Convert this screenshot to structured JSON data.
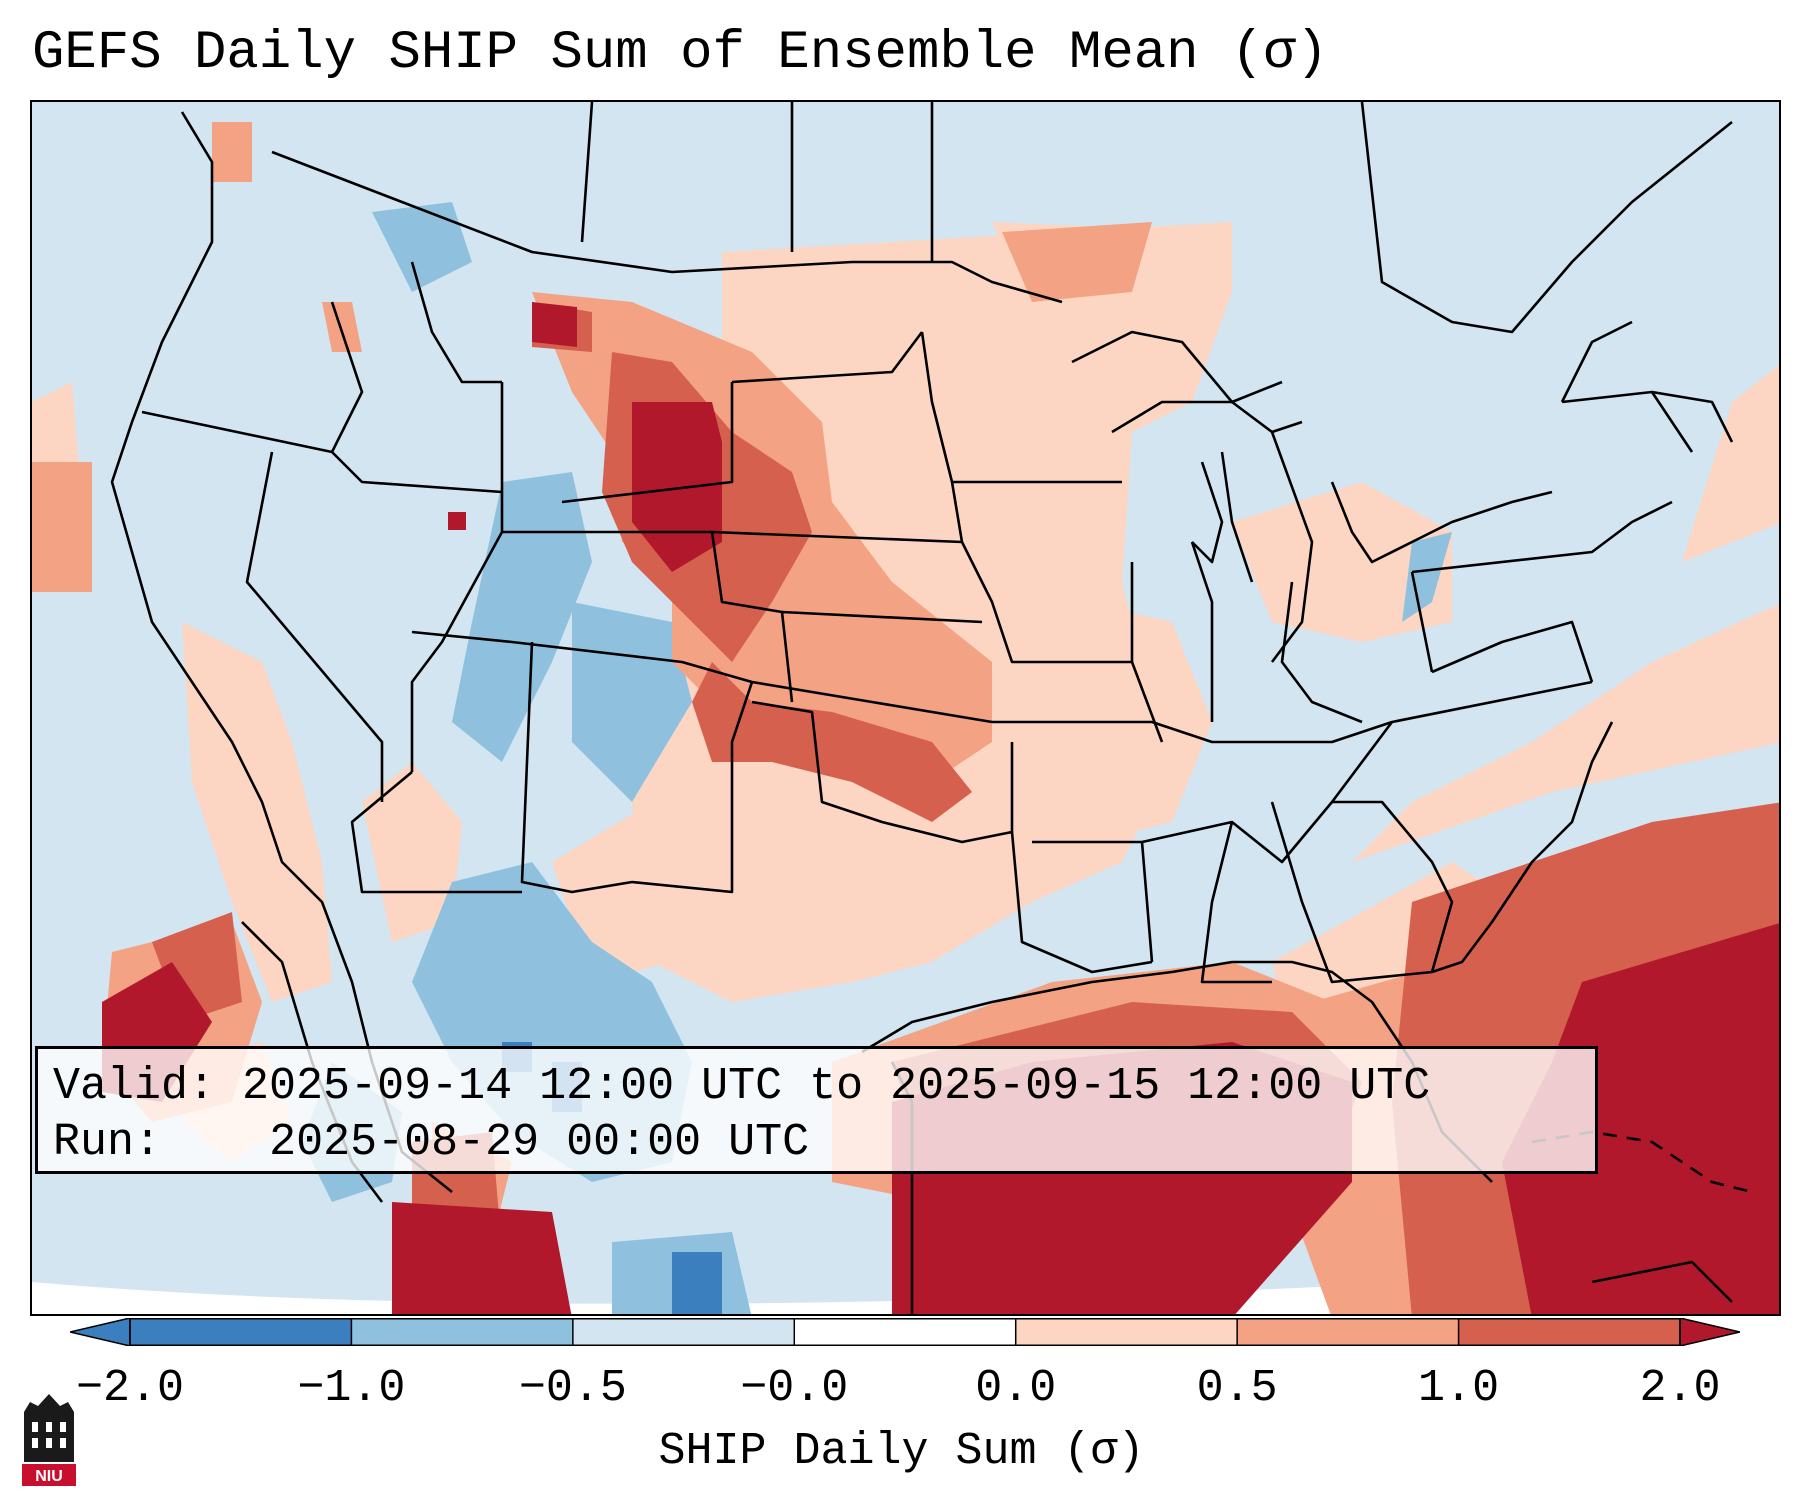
{
  "title": "GEFS Daily SHIP Sum of Ensemble Mean (σ)",
  "info": {
    "valid_prefix": "Valid:",
    "valid_value": "2025-09-14 12:00 UTC to 2025-09-15 12:00 UTC",
    "run_prefix": "Run:",
    "run_value": "2025-08-29 00:00 UTC"
  },
  "colorbar": {
    "label": "SHIP Daily Sum (σ)",
    "ticks": [
      "−2.0",
      "−1.0",
      "−0.5",
      "−0.0",
      "0.0",
      "0.5",
      "1.0",
      "2.0"
    ],
    "colors": [
      "#3b7fbf",
      "#8fc1df",
      "#d2e5f1",
      "#ffffff",
      "#fcd6c2",
      "#f3a383",
      "#d5604d",
      "#b2182b"
    ]
  },
  "map": {
    "region": "Continental United States",
    "regions": [
      {
        "name": "north-plains-maximum",
        "value": 2.0
      },
      {
        "name": "kansas-band",
        "value": 1.5
      },
      {
        "name": "gulf-of-mexico",
        "value": 2.0
      },
      {
        "name": "southeast-coast-atlantic",
        "value": 1.5
      },
      {
        "name": "southwest-minimum",
        "value": -1.0
      },
      {
        "name": "pacific-offshore-maximum",
        "value": 2.0
      }
    ]
  },
  "logo": {
    "text": "NIU"
  }
}
